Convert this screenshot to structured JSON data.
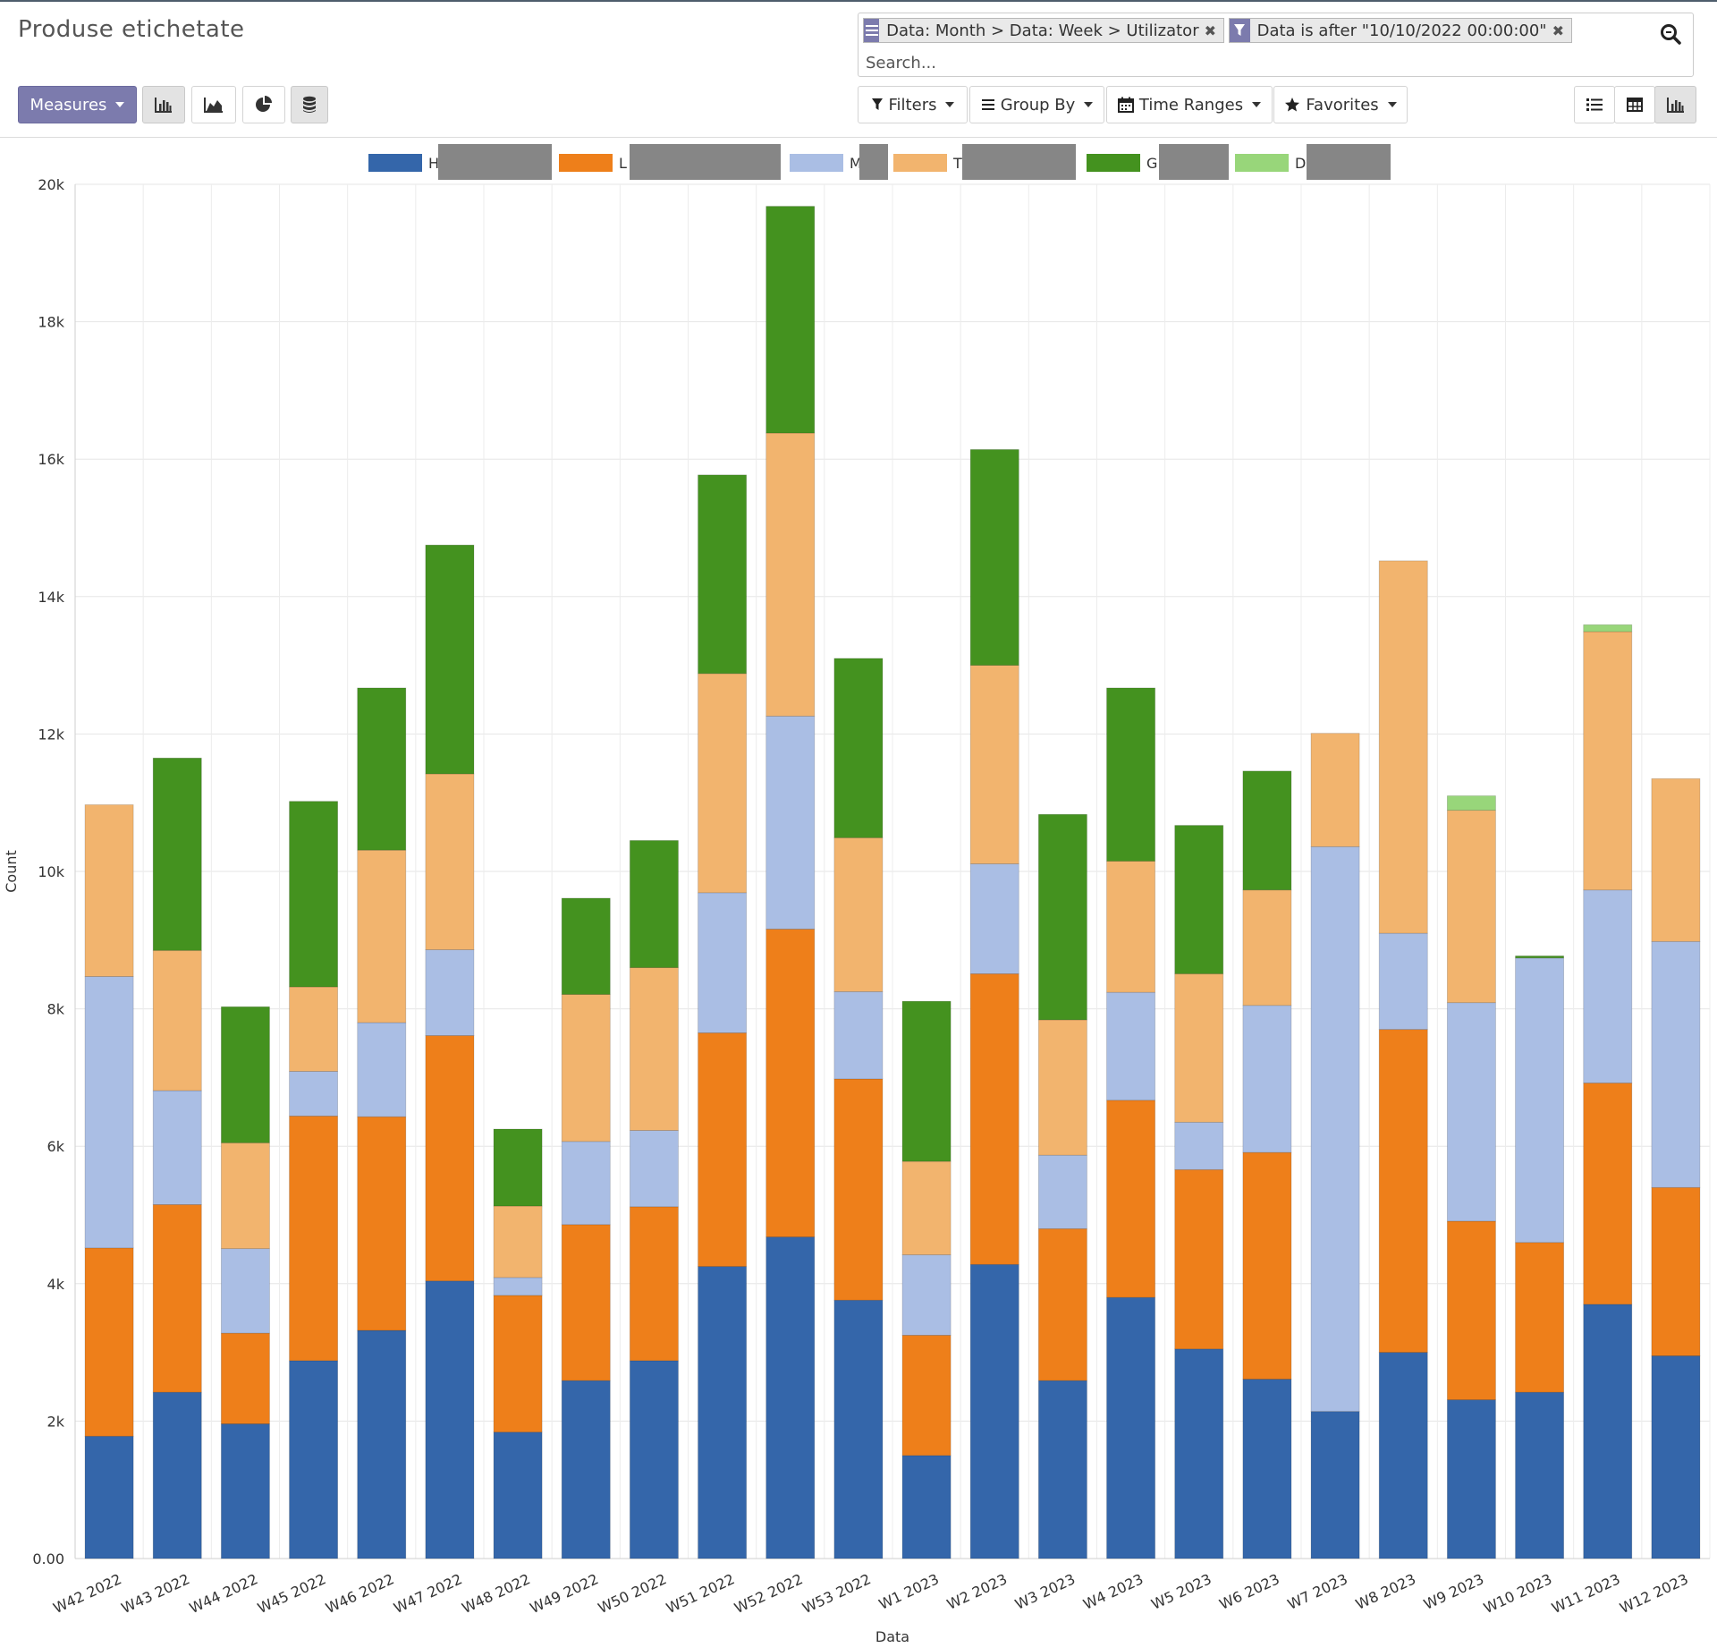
{
  "page": {
    "title": "Produse etichetate"
  },
  "search": {
    "facets": [
      {
        "type": "groupby",
        "text": "Data: Month > Data: Week > Utilizator"
      },
      {
        "type": "filter",
        "text": "Data is after \"10/10/2022 00:00:00\""
      }
    ],
    "placeholder": "Search..."
  },
  "toolbar": {
    "measures_label": "Measures",
    "chart_mode_icons": [
      "bar-chart-icon",
      "area-chart-icon",
      "pie-chart-icon",
      "database-stack-icon"
    ],
    "filters_label": "Filters",
    "groupby_label": "Group By",
    "timeranges_label": "Time Ranges",
    "favorites_label": "Favorites",
    "view_icons": [
      "list-view-icon",
      "pivot-table-icon",
      "graph-view-icon"
    ]
  },
  "chart_data": {
    "type": "bar",
    "stacked": true,
    "xlabel": "Data",
    "ylabel": "Count",
    "ylim": [
      0,
      20000
    ],
    "yticks": [
      "0.00",
      "2k",
      "4k",
      "6k",
      "8k",
      "10k",
      "12k",
      "14k",
      "16k",
      "18k",
      "20k"
    ],
    "grid": true,
    "legend_position": "top",
    "categories": [
      "W42 2022",
      "W43 2022",
      "W44 2022",
      "W45 2022",
      "W46 2022",
      "W47 2022",
      "W48 2022",
      "W49 2022",
      "W50 2022",
      "W51 2022",
      "W52 2022",
      "W53 2022",
      "W1 2023",
      "W2 2023",
      "W3 2023",
      "W4 2023",
      "W5 2023",
      "W6 2023",
      "W7 2023",
      "W8 2023",
      "W9 2023",
      "W10 2023",
      "W11 2023",
      "W12 2023"
    ],
    "series": [
      {
        "name": "H",
        "color": "#3466aa",
        "values": [
          1780,
          2420,
          1960,
          2880,
          3320,
          4040,
          1840,
          2590,
          2880,
          4250,
          4680,
          3760,
          1500,
          4280,
          2590,
          3800,
          3050,
          2610,
          2140,
          3000,
          2310,
          2420,
          3700,
          2950
        ]
      },
      {
        "name": "L",
        "color": "#ee7f1a",
        "values": [
          2740,
          2730,
          1320,
          3560,
          3110,
          3570,
          1990,
          2270,
          2240,
          3400,
          4480,
          3220,
          1750,
          4230,
          2210,
          2870,
          2610,
          3300,
          0,
          4700,
          2600,
          2180,
          3220,
          2450
        ]
      },
      {
        "name": "M",
        "color": "#aabee4",
        "values": [
          3950,
          1660,
          1230,
          650,
          1370,
          1250,
          260,
          1210,
          1110,
          2040,
          3100,
          1270,
          1170,
          1600,
          1070,
          1570,
          690,
          2140,
          8220,
          1400,
          3180,
          4140,
          2810,
          3580
        ]
      },
      {
        "name": "T",
        "color": "#f2b46e",
        "values": [
          2500,
          2040,
          1540,
          1230,
          2510,
          2560,
          1040,
          2140,
          2370,
          3190,
          4120,
          2240,
          1360,
          2890,
          1970,
          1910,
          2160,
          1680,
          1650,
          5420,
          2800,
          0,
          3760,
          2370
        ]
      },
      {
        "name": "G",
        "color": "#44921f",
        "values": [
          0,
          2800,
          1980,
          2700,
          2360,
          3330,
          1120,
          1400,
          1850,
          2890,
          3300,
          2610,
          2330,
          3140,
          2990,
          2520,
          2160,
          1730,
          0,
          0,
          0,
          30,
          0,
          0
        ]
      },
      {
        "name": "D",
        "color": "#98d67a",
        "values": [
          0,
          0,
          0,
          0,
          0,
          0,
          0,
          0,
          0,
          0,
          0,
          0,
          0,
          0,
          0,
          0,
          0,
          0,
          0,
          0,
          210,
          0,
          100,
          0
        ]
      }
    ]
  }
}
